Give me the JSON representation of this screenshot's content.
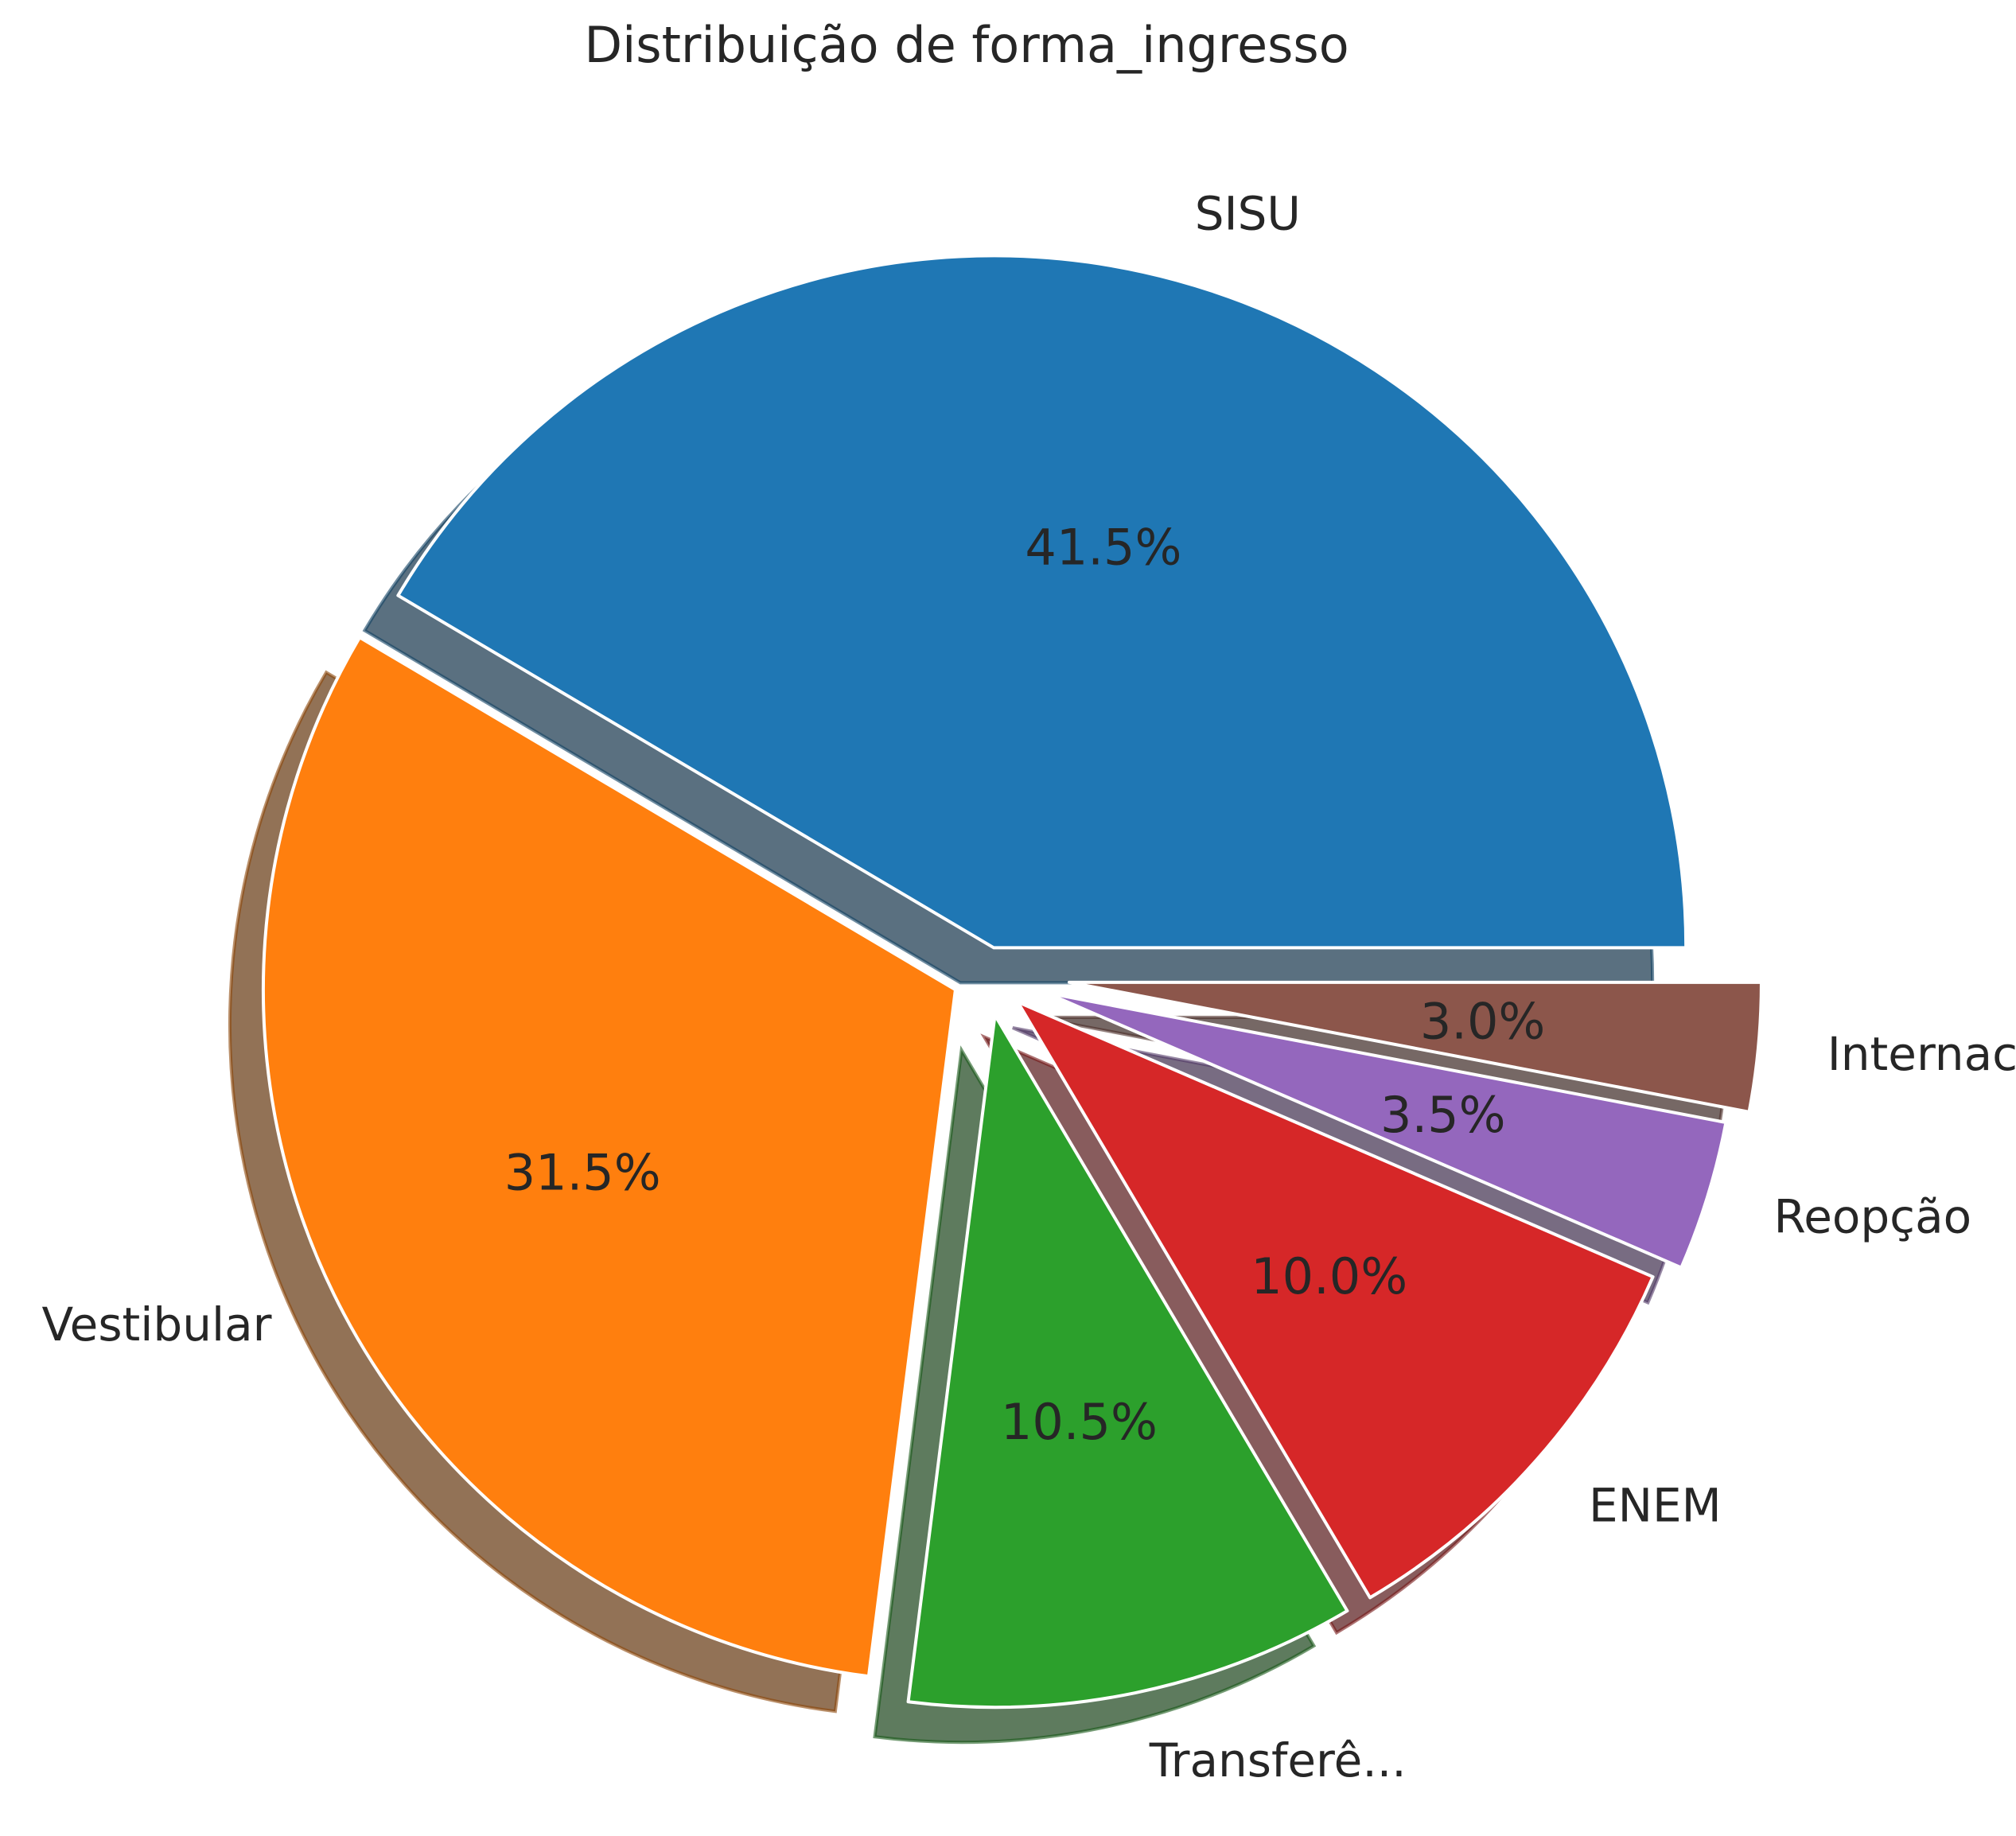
{
  "chart_data": {
    "type": "pie",
    "title": "Distribuição de forma_ingresso",
    "categories": [
      "SISU",
      "Vestibular",
      "Transferê...",
      "ENEM",
      "Reopção",
      "Internaci..."
    ],
    "values": [
      41.5,
      31.5,
      10.5,
      10.0,
      3.5,
      3.0
    ],
    "value_labels": [
      "41.5%",
      "31.5%",
      "10.5%",
      "10.0%",
      "3.5%",
      "3.0%"
    ],
    "colors": [
      "#1f77b4",
      "#ff7f0e",
      "#2ca02c",
      "#d62728",
      "#9467bd",
      "#8c564b"
    ],
    "start_angle_deg": 0,
    "direction": "counterclockwise",
    "exploded": true,
    "shadow": true,
    "legend": "none"
  }
}
